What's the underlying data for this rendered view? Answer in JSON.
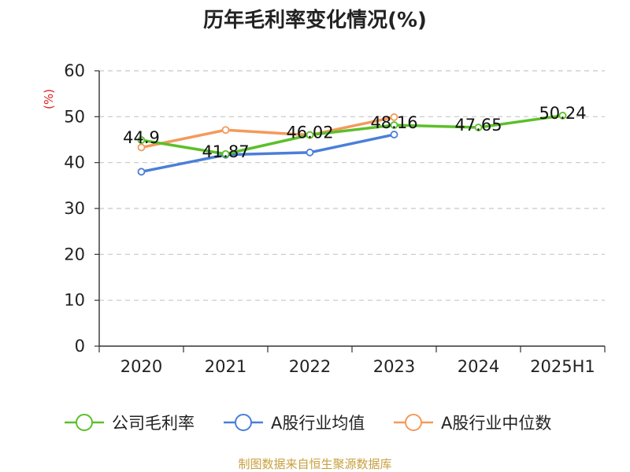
{
  "chart_data": {
    "type": "line",
    "title": "历年毛利率变化情况(%)",
    "ylabel": "(%)",
    "xlabel": "",
    "categories": [
      "2020",
      "2021",
      "2022",
      "2023",
      "2024",
      "2025H1"
    ],
    "ylim": [
      0,
      60
    ],
    "yticks": [
      0,
      10,
      20,
      30,
      40,
      50,
      60
    ],
    "grid": true,
    "legend_position": "bottom",
    "series": [
      {
        "name": "公司毛利率",
        "color": "#5cbf2a",
        "values": [
          44.9,
          41.87,
          46.02,
          48.16,
          47.65,
          50.24
        ],
        "labels": [
          "44.9",
          "41.87",
          "46.02",
          "48.16",
          "47.65",
          "50.24"
        ]
      },
      {
        "name": "A股行业均值",
        "color": "#4a7fd8",
        "values": [
          38.0,
          41.7,
          42.2,
          46.1,
          null,
          null
        ]
      },
      {
        "name": "A股行业中位数",
        "color": "#f39a5c",
        "values": [
          43.3,
          47.1,
          46.0,
          49.9,
          null,
          null
        ]
      }
    ],
    "source": "制图数据来自恒生聚源数据库"
  }
}
